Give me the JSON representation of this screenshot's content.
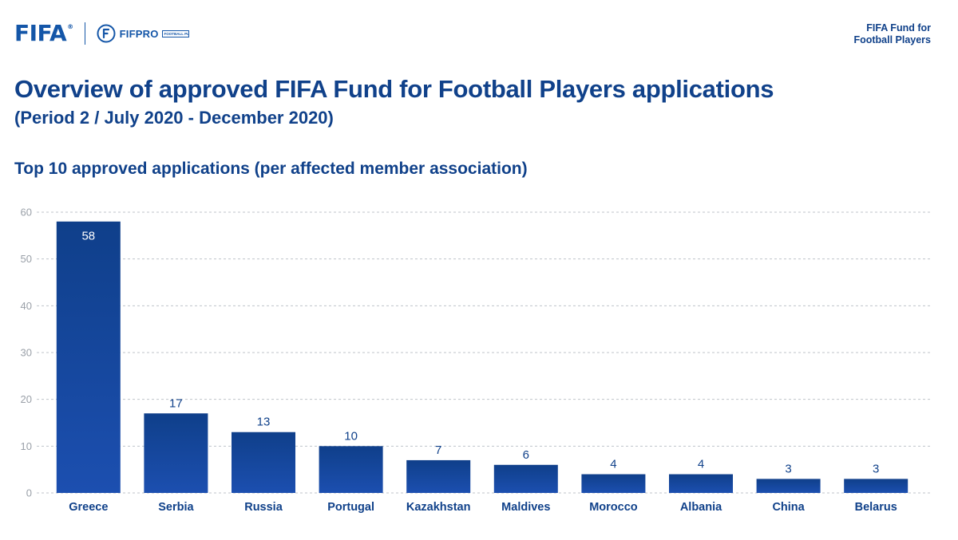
{
  "header": {
    "logo_text": "FIFA",
    "logo_mark": "®",
    "partner_logo_text": "FIFPRO",
    "partner_logo_tag": "FOOTBALL PLAYERS WORLDWIDE",
    "corner_line1": "FIFA Fund for",
    "corner_line2": "Football Players"
  },
  "page": {
    "title": "Overview of approved FIFA Fund for Football Players applications",
    "subtitle": "(Period 2 / July 2020 - December 2020)"
  },
  "colors": {
    "bar_top": "#0f3f8a",
    "bar_bottom": "#1c4fb0",
    "text": "#10418a",
    "grid": "#bfc3c9"
  },
  "chart_data": {
    "type": "bar",
    "title": "Top 10 approved applications (per affected member association)",
    "categories": [
      "Greece",
      "Serbia",
      "Russia",
      "Portugal",
      "Kazakhstan",
      "Maldives",
      "Morocco",
      "Albania",
      "China",
      "Belarus"
    ],
    "values": [
      58,
      17,
      13,
      10,
      7,
      6,
      4,
      4,
      3,
      3
    ],
    "yticks": [
      0,
      10,
      20,
      30,
      40,
      50,
      60
    ],
    "ylim": [
      0,
      60
    ],
    "xlabel": "",
    "ylabel": "",
    "grid": true,
    "legend": "none"
  }
}
